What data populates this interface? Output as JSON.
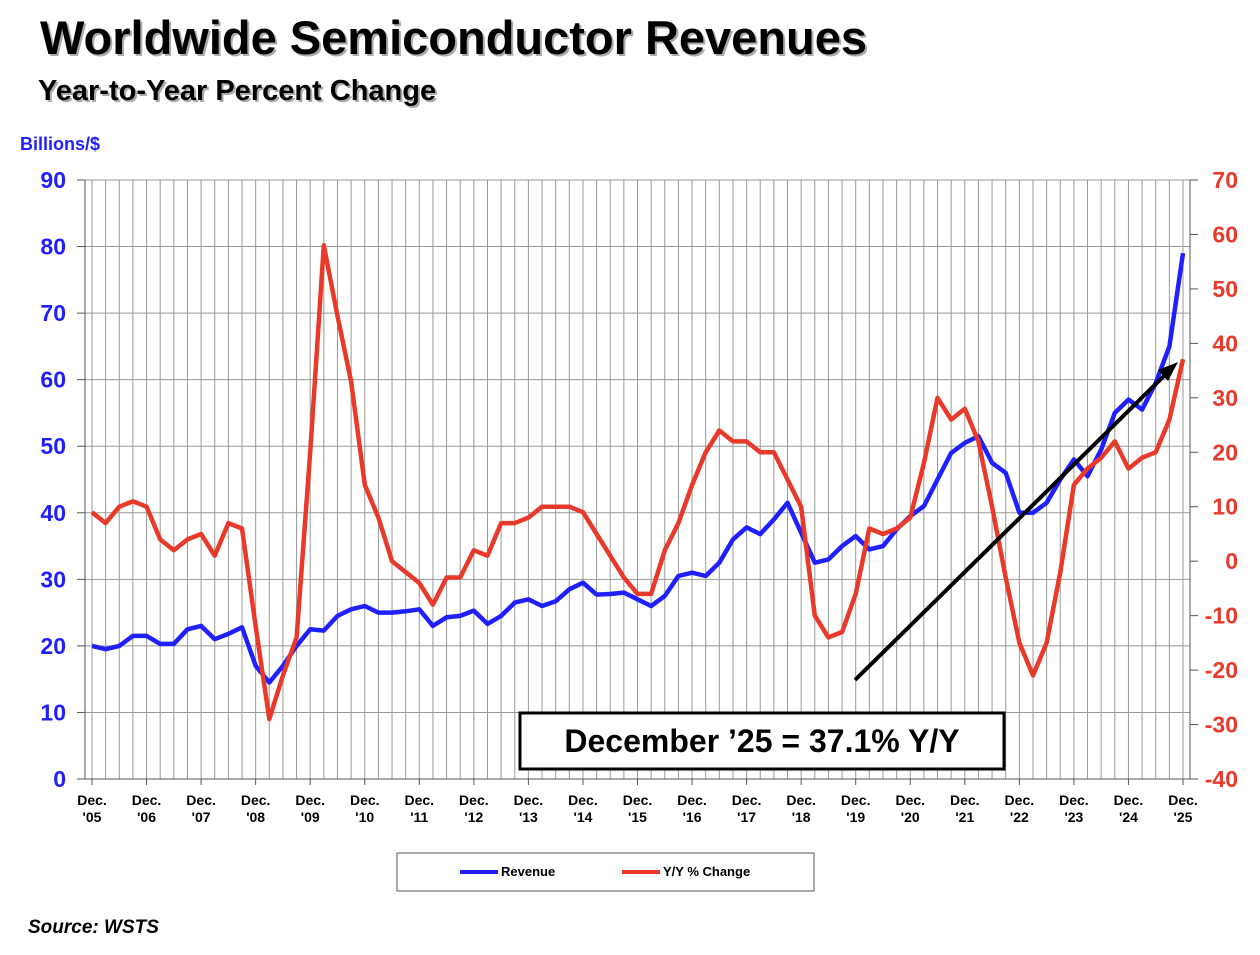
{
  "chart_data": {
    "type": "line",
    "title": "Worldwide Semiconductor Revenues",
    "subtitle": "Year-to-Year Percent Change",
    "y_label": "Billions/$",
    "annotation": "December ’25 = 37.1% Y/Y",
    "source": "Source: WSTS",
    "x": [
      "2005-12",
      "2006-03",
      "2006-06",
      "2006-09",
      "2006-12",
      "2007-03",
      "2007-06",
      "2007-09",
      "2007-12",
      "2008-03",
      "2008-06",
      "2008-09",
      "2008-12",
      "2009-03",
      "2009-06",
      "2009-09",
      "2009-12",
      "2010-03",
      "2010-06",
      "2010-09",
      "2010-12",
      "2011-03",
      "2011-06",
      "2011-09",
      "2011-12",
      "2012-03",
      "2012-06",
      "2012-09",
      "2012-12",
      "2013-03",
      "2013-06",
      "2013-09",
      "2013-12",
      "2014-03",
      "2014-06",
      "2014-09",
      "2014-12",
      "2015-03",
      "2015-06",
      "2015-09",
      "2015-12",
      "2016-03",
      "2016-06",
      "2016-09",
      "2016-12",
      "2017-03",
      "2017-06",
      "2017-09",
      "2017-12",
      "2018-03",
      "2018-06",
      "2018-09",
      "2018-12",
      "2019-03",
      "2019-06",
      "2019-09",
      "2019-12",
      "2020-03",
      "2020-06",
      "2020-09",
      "2020-12",
      "2021-03",
      "2021-06",
      "2021-09",
      "2021-12",
      "2022-03",
      "2022-06",
      "2022-09",
      "2022-12",
      "2023-03",
      "2023-06",
      "2023-09",
      "2023-12",
      "2024-03",
      "2024-06",
      "2024-09",
      "2024-12",
      "2025-03",
      "2025-06",
      "2025-09",
      "2025-12"
    ],
    "xticks": [
      {
        "value": "2005-12",
        "label": "Dec. '05"
      },
      {
        "value": "2006-12",
        "label": "Dec. '06"
      },
      {
        "value": "2007-12",
        "label": "Dec. '07"
      },
      {
        "value": "2008-12",
        "label": "Dec. '08"
      },
      {
        "value": "2009-12",
        "label": "Dec. '09"
      },
      {
        "value": "2010-12",
        "label": "Dec. '10"
      },
      {
        "value": "2011-12",
        "label": "Dec. '11"
      },
      {
        "value": "2012-12",
        "label": "Dec. '12"
      },
      {
        "value": "2013-12",
        "label": "Dec. '13"
      },
      {
        "value": "2014-12",
        "label": "Dec. '14"
      },
      {
        "value": "2015-12",
        "label": "Dec. '15"
      },
      {
        "value": "2016-12",
        "label": "Dec. '16"
      },
      {
        "value": "2017-12",
        "label": "Dec. '17"
      },
      {
        "value": "2018-12",
        "label": "Dec. '18"
      },
      {
        "value": "2019-12",
        "label": "Dec. '19"
      },
      {
        "value": "2020-12",
        "label": "Dec. '20"
      },
      {
        "value": "2021-12",
        "label": "Dec. '21"
      },
      {
        "value": "2022-12",
        "label": "Dec. '22"
      },
      {
        "value": "2023-12",
        "label": "Dec. '23"
      },
      {
        "value": "2024-12",
        "label": "Dec. '24"
      },
      {
        "value": "2025-12",
        "label": "Dec. '25"
      }
    ],
    "series": [
      {
        "name": "Revenue",
        "color": "#1f1fff",
        "axis": "y",
        "values": [
          20,
          19.5,
          20,
          21.5,
          21.5,
          20.3,
          20.3,
          22.5,
          23,
          21,
          21.8,
          22.8,
          17,
          14.5,
          17,
          20,
          22.5,
          22.3,
          24.5,
          25.5,
          26,
          25,
          25,
          25.2,
          25.5,
          23,
          24.3,
          24.5,
          25.3,
          23.3,
          24.5,
          26.5,
          27,
          26,
          26.7,
          28.5,
          29.5,
          27.7,
          27.8,
          28,
          27,
          26,
          27.5,
          30.5,
          31,
          30.5,
          32.5,
          36,
          37.8,
          36.8,
          39,
          41.5,
          37,
          32.5,
          33,
          35,
          36.5,
          34.5,
          35,
          37.5,
          39.5,
          41,
          45,
          49,
          50.5,
          51.5,
          47.5,
          46,
          40,
          40,
          41.5,
          45,
          48,
          45.5,
          49.5,
          55,
          57,
          55.5,
          59.5,
          65,
          79
        ]
      },
      {
        "name": "Y/Y % Change",
        "color": "#e8392b",
        "axis": "y2",
        "values": [
          9,
          7,
          10,
          11,
          10,
          4,
          2,
          4,
          5,
          1,
          7,
          6,
          -12,
          -29,
          -21,
          -14,
          20,
          58,
          45,
          33,
          14,
          8,
          0,
          -2,
          -4,
          -8,
          -3,
          -3,
          2,
          1,
          7,
          7,
          8,
          10,
          10,
          10,
          9,
          5,
          1,
          -3,
          -6,
          -6,
          2,
          7,
          14,
          20,
          24,
          22,
          22,
          20,
          20,
          15,
          10,
          -10,
          -14,
          -13,
          -6,
          6,
          5,
          6,
          8,
          18,
          30,
          26,
          28,
          22,
          10,
          -3,
          -15,
          -21,
          -15,
          -2,
          14,
          17,
          19,
          22,
          17,
          19,
          20,
          26,
          37.1
        ]
      }
    ],
    "ylim": [
      0,
      90
    ],
    "yticks": [
      0,
      10,
      20,
      30,
      40,
      50,
      60,
      70,
      80,
      90
    ],
    "y2lim": [
      -40,
      70
    ],
    "y2ticks": [
      -40,
      -30,
      -20,
      -10,
      0,
      10,
      20,
      30,
      40,
      50,
      60,
      70
    ],
    "grid": true,
    "legend": "bottom"
  }
}
